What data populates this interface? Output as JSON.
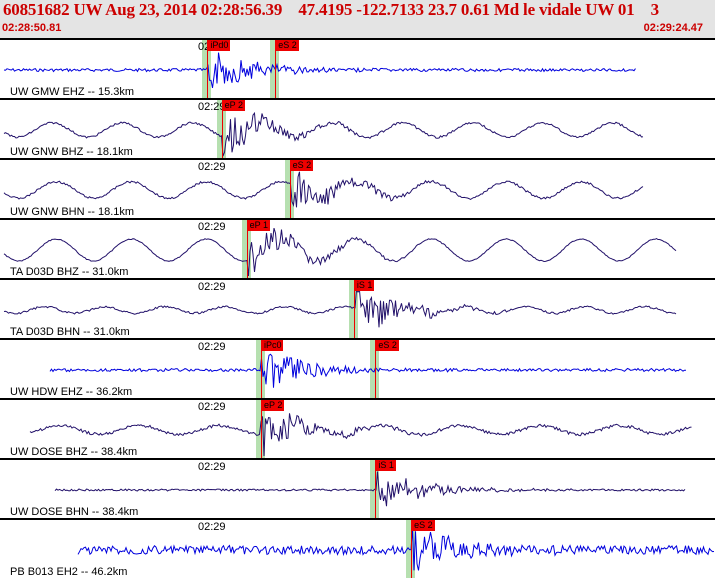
{
  "header": {
    "title": "60851682 UW Aug 23, 2014 02:28:56.39    47.4195 -122.7133 23.7 0.61 Md le vidale UW 01    3",
    "start_time": "02:28:50.81",
    "end_time": "02:29:24.47"
  },
  "colors": {
    "header_bg": "#e4e4e4",
    "header_text": "#cc0000",
    "pick": "#ee0000",
    "band": "#b6e0b0",
    "trace_blue": "#0000dd",
    "trace_navy": "#22116a"
  },
  "traces": [
    {
      "label": "UW GMW EHZ -- 15.3km",
      "tick": "02:29",
      "color": "#0000dd",
      "picks": [
        {
          "tag": "iPd0",
          "pos": 0.29
        },
        {
          "tag": "eS 2",
          "pos": 0.385
        }
      ]
    },
    {
      "label": "UW GNW BHZ -- 18.1km",
      "tick": "02:29",
      "color": "#22116a",
      "picks": [
        {
          "tag": "eP 2",
          "pos": 0.31
        }
      ]
    },
    {
      "label": "UW GNW BHN -- 18.1km",
      "tick": "02:29",
      "color": "#22116a",
      "picks": [
        {
          "tag": "eS 2",
          "pos": 0.405
        }
      ]
    },
    {
      "label": "TA D03D BHZ -- 31.0km",
      "tick": "02:29",
      "color": "#22116a",
      "picks": [
        {
          "tag": "eP 1",
          "pos": 0.345
        }
      ]
    },
    {
      "label": "TA D03D BHN -- 31.0km",
      "tick": "02:29",
      "color": "#22116a",
      "picks": [
        {
          "tag": "iS 1",
          "pos": 0.495
        }
      ]
    },
    {
      "label": "UW HDW EHZ -- 36.2km",
      "tick": "02:29",
      "color": "#0000dd",
      "picks": [
        {
          "tag": "iPc0",
          "pos": 0.365
        },
        {
          "tag": "eS 2",
          "pos": 0.525
        }
      ]
    },
    {
      "label": "UW DOSE BHZ -- 38.4km",
      "tick": "02:29",
      "color": "#22116a",
      "picks": [
        {
          "tag": "eP 2",
          "pos": 0.365
        }
      ]
    },
    {
      "label": "UW DOSE BHN -- 38.4km",
      "tick": "02:29",
      "color": "#22116a",
      "picks": [
        {
          "tag": "iS 1",
          "pos": 0.525
        }
      ]
    },
    {
      "label": "PB B013 EH2 -- 46.2km",
      "tick": "02:29",
      "color": "#0000dd",
      "picks": [
        {
          "tag": "eS 2",
          "pos": 0.575
        }
      ]
    }
  ]
}
